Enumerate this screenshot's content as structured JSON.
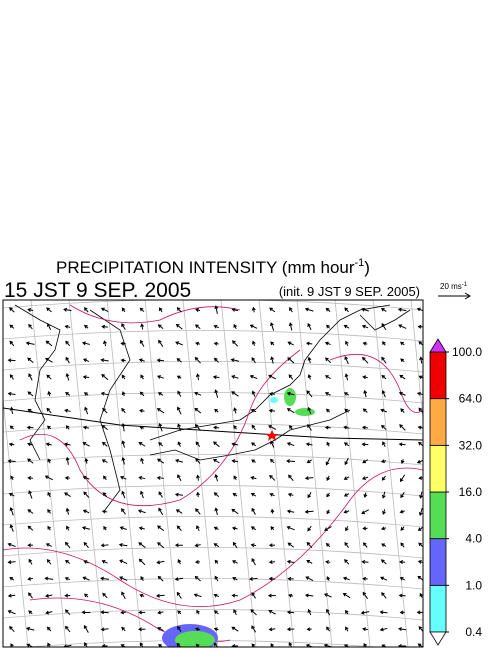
{
  "title": {
    "text": "PRECIPITATION INTENSITY (mm hour",
    "superscript": "-1",
    "close": ")"
  },
  "valid_time": "15 JST 9 SEP. 2005",
  "init_time": "(init. 9 JST 9 SEP. 2005)",
  "reference_vector": {
    "label": "20 ms",
    "superscript": "-1"
  },
  "colorbar": {
    "levels": [
      {
        "value": 0.4,
        "label": "0.4"
      },
      {
        "value": 1,
        "label": "1.0"
      },
      {
        "value": 4,
        "label": "4.0"
      },
      {
        "value": 16,
        "label": "16.0"
      },
      {
        "value": 32,
        "label": "32.0"
      },
      {
        "value": 64,
        "label": "64.0"
      },
      {
        "value": 100,
        "label": "100.0"
      }
    ],
    "colors": [
      "#66ffff",
      "#6666ff",
      "#55dd55",
      "#ffff66",
      "#ffaa44",
      "#ee0000"
    ],
    "under_color": "#ffffff",
    "over_color": "#cc33ff"
  }
}
